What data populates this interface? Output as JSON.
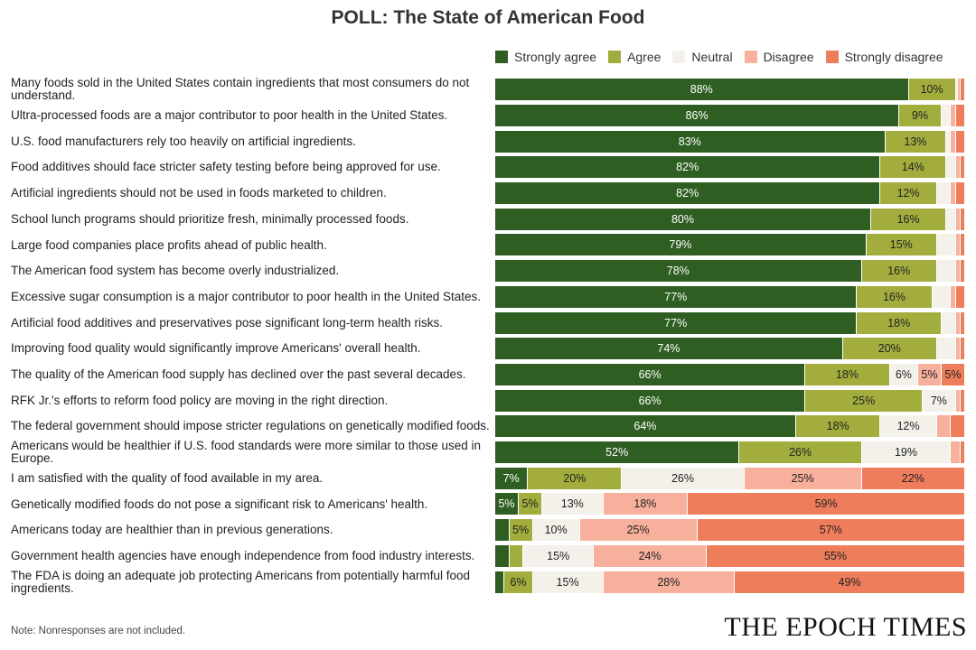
{
  "chart_data": {
    "type": "bar",
    "orientation": "horizontal-stacked",
    "title": "POLL: The State of American Food",
    "legend_placement": "top-right",
    "series": [
      {
        "name": "Strongly agree",
        "color": "#2f5e22",
        "label_color": "#ffffff"
      },
      {
        "name": "Agree",
        "color": "#a3ad3d",
        "label_color": "#222222"
      },
      {
        "name": "Neutral",
        "color": "#f3f1ea",
        "label_color": "#222222"
      },
      {
        "name": "Disagree",
        "color": "#f7b09c",
        "label_color": "#222222"
      },
      {
        "name": "Strongly disagree",
        "color": "#ee7d5c",
        "label_color": "#222222"
      }
    ],
    "categories": [
      "Many foods sold in the United States contain ingredients that most consumers do not understand.",
      "Ultra-processed foods are a major contributor to poor health in the United States.",
      "U.S. food manufacturers rely too heavily on artificial ingredients.",
      "Food additives should face stricter safety testing before being approved for use.",
      "Artificial ingredients should not be used in foods marketed to children.",
      "School lunch programs should prioritize fresh, minimally processed foods.",
      "Large food companies place profits ahead of public health.",
      "The American food system has become overly industrialized.",
      "Excessive sugar consumption is a major contributor to poor health in the United States.",
      "Artificial food additives and preservatives pose significant long-term health risks.",
      "Improving food quality would significantly improve Americans' overall health.",
      "The quality of the American food supply has declined over the past several decades.",
      "RFK Jr.'s efforts to reform food policy are moving in the right direction.",
      "The federal government should impose stricter regulations on genetically modified foods.",
      "Americans would be healthier if U.S. food standards were more similar to those used in Europe.",
      "I am satisfied with the quality of food available in my area.",
      "Genetically modified foods do not pose a significant risk to Americans' health.",
      "Americans today are healthier than in previous generations.",
      "Government health agencies have enough independence from food industry interests.",
      "The FDA is doing an adequate job protecting Americans from potentially harmful food ingredients."
    ],
    "values": [
      [
        88,
        10,
        0.5,
        0.5,
        1
      ],
      [
        86,
        9,
        2,
        1,
        2
      ],
      [
        83,
        13,
        1,
        1,
        2
      ],
      [
        82,
        14,
        2,
        1,
        1
      ],
      [
        82,
        12,
        3,
        1,
        2
      ],
      [
        80,
        16,
        2,
        1,
        1
      ],
      [
        79,
        15,
        4,
        1,
        1
      ],
      [
        78,
        16,
        4,
        1,
        1
      ],
      [
        77,
        16,
        4,
        1,
        2
      ],
      [
        77,
        18,
        3,
        1,
        1
      ],
      [
        74,
        20,
        4,
        1,
        1
      ],
      [
        66,
        18,
        6,
        5,
        5
      ],
      [
        66,
        25,
        7,
        1,
        1
      ],
      [
        64,
        18,
        12,
        3,
        3
      ],
      [
        52,
        26,
        19,
        2,
        1
      ],
      [
        7,
        20,
        26,
        25,
        22
      ],
      [
        5,
        5,
        13,
        18,
        59
      ],
      [
        3,
        5,
        10,
        25,
        57
      ],
      [
        3,
        3,
        15,
        24,
        55
      ],
      [
        2,
        6,
        15,
        28,
        49
      ]
    ],
    "labels": [
      [
        "88%",
        "10%",
        "",
        "",
        ""
      ],
      [
        "86%",
        "9%",
        "",
        "",
        ""
      ],
      [
        "83%",
        "13%",
        "",
        "",
        ""
      ],
      [
        "82%",
        "14%",
        "",
        "",
        ""
      ],
      [
        "82%",
        "12%",
        "",
        "",
        ""
      ],
      [
        "80%",
        "16%",
        "",
        "",
        ""
      ],
      [
        "79%",
        "15%",
        "",
        "",
        ""
      ],
      [
        "78%",
        "16%",
        "",
        "",
        ""
      ],
      [
        "77%",
        "16%",
        "",
        "",
        ""
      ],
      [
        "77%",
        "18%",
        "",
        "",
        ""
      ],
      [
        "74%",
        "20%",
        "",
        "",
        ""
      ],
      [
        "66%",
        "18%",
        "6%",
        "5%",
        "5%"
      ],
      [
        "66%",
        "25%",
        "7%",
        "",
        ""
      ],
      [
        "64%",
        "18%",
        "12%",
        "",
        ""
      ],
      [
        "52%",
        "26%",
        "19%",
        "",
        ""
      ],
      [
        "7%",
        "20%",
        "26%",
        "25%",
        "22%"
      ],
      [
        "5%",
        "5%",
        "13%",
        "18%",
        "59%"
      ],
      [
        "",
        "5%",
        "10%",
        "25%",
        "57%"
      ],
      [
        "",
        "",
        "15%",
        "24%",
        "55%"
      ],
      [
        "",
        "6%",
        "15%",
        "28%",
        "49%"
      ]
    ],
    "xlim": [
      0,
      100
    ]
  },
  "footer": {
    "note": "Note: Nonresponses are not included.",
    "brand": "THE EPOCH TIMES"
  }
}
